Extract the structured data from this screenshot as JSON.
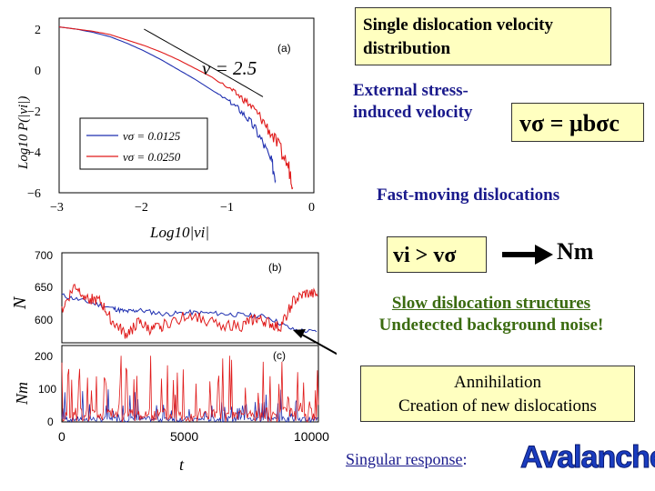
{
  "chart_data": [
    {
      "type": "line",
      "panel_tag": "(a)",
      "xlabel": "Log10|vi|",
      "ylabel": "Log10 P(|vi|)",
      "annotation": "ν = 2.5",
      "x_ticks": [
        "−3",
        "−2",
        "−1",
        "0"
      ],
      "y_ticks": [
        "2",
        "0",
        "−2",
        "−4",
        "−6"
      ],
      "xlim": [
        -3,
        0
      ],
      "ylim": [
        -6,
        2
      ],
      "grid": false,
      "legend_position": "lower-left",
      "series": [
        {
          "name": "vσ = 0.0125",
          "color": "#1f2fb0",
          "x": [
            -3,
            -2.8,
            -2.6,
            -2.4,
            -2.2,
            -2.0,
            -1.8,
            -1.6,
            -1.4,
            -1.2,
            -1.0,
            -0.9,
            -0.8,
            -0.7,
            -0.6,
            -0.5,
            -0.45
          ],
          "y": [
            1.6,
            1.5,
            1.35,
            1.15,
            0.85,
            0.5,
            0.1,
            -0.35,
            -0.8,
            -1.3,
            -1.8,
            -2.1,
            -2.5,
            -3.0,
            -3.7,
            -4.6,
            -5.3
          ]
        },
        {
          "name": "vσ = 0.0250",
          "color": "#e01a1a",
          "x": [
            -3,
            -2.8,
            -2.6,
            -2.4,
            -2.2,
            -2.0,
            -1.8,
            -1.6,
            -1.4,
            -1.2,
            -1.0,
            -0.9,
            -0.8,
            -0.7,
            -0.6,
            -0.5,
            -0.4,
            -0.3,
            -0.25
          ],
          "y": [
            1.6,
            1.5,
            1.4,
            1.25,
            1.0,
            0.75,
            0.45,
            0.1,
            -0.3,
            -0.7,
            -1.2,
            -1.5,
            -1.8,
            -2.2,
            -2.7,
            -3.3,
            -4.0,
            -4.8,
            -5.5
          ]
        },
        {
          "name": "",
          "color": "#000000",
          "style": "reference",
          "x": [
            -2.0,
            -1.5,
            -1.0,
            -0.6
          ],
          "y": [
            1.5,
            0.4,
            -0.7,
            -1.6
          ]
        }
      ]
    },
    {
      "type": "line",
      "panel_tag": "(b)",
      "ylabel": "N",
      "y_ticks": [
        "700",
        "650",
        "600"
      ],
      "ylim": [
        590,
        700
      ],
      "xlim": [
        0,
        10000
      ],
      "grid": false,
      "series": [
        {
          "name": "",
          "color": "#1f2fb0",
          "x": [
            0,
            1000,
            2000,
            2500,
            3000,
            4000,
            5000,
            6000,
            7000,
            8000,
            9000,
            10000
          ],
          "y": [
            648,
            640,
            632,
            628,
            630,
            625,
            627,
            626,
            624,
            622,
            606,
            603
          ]
        },
        {
          "name": "",
          "color": "#e01a1a",
          "x": [
            0,
            500,
            1000,
            1500,
            2000,
            2500,
            3000,
            3500,
            4000,
            5000,
            6000,
            7000,
            7500,
            8000,
            8500,
            9000,
            9500,
            10000
          ],
          "y": [
            630,
            660,
            645,
            640,
            615,
            600,
            615,
            605,
            612,
            625,
            613,
            610,
            620,
            615,
            608,
            640,
            650,
            648
          ]
        }
      ]
    },
    {
      "type": "line",
      "panel_tag": "(c)",
      "xlabel": "t",
      "ylabel": "Nm",
      "x_ticks": [
        "0",
        "5000",
        "10000"
      ],
      "y_ticks": [
        "200",
        "100",
        "0"
      ],
      "xlim": [
        0,
        10000
      ],
      "ylim": [
        0,
        210
      ],
      "grid": false,
      "series": [
        {
          "name": "",
          "color": "#1f2fb0",
          "style": "spiky-low"
        },
        {
          "name": "",
          "color": "#e01a1a",
          "style": "spiky-high"
        }
      ]
    }
  ],
  "notes": {
    "title": "Single dislocation velocity distribution",
    "external_label": "External stress-induced velocity",
    "formula_lhs": "vσ",
    "formula_rhs": "μbσc",
    "fast_moving": "Fast-moving dislocations",
    "vi_expr_left": "vi",
    "vi_expr_rel": ">",
    "vi_expr_right": "vσ",
    "arrow_target": "Nm",
    "slow_line1": "Slow dislocation structures",
    "slow_line2": "Undetected background noise!",
    "annihilation_line1": "Annihilation",
    "annihilation_line2": "Creation of new dislocations",
    "singular_label": "Singular response",
    "singular_colon": ":",
    "avalanches": "Avalanches"
  }
}
